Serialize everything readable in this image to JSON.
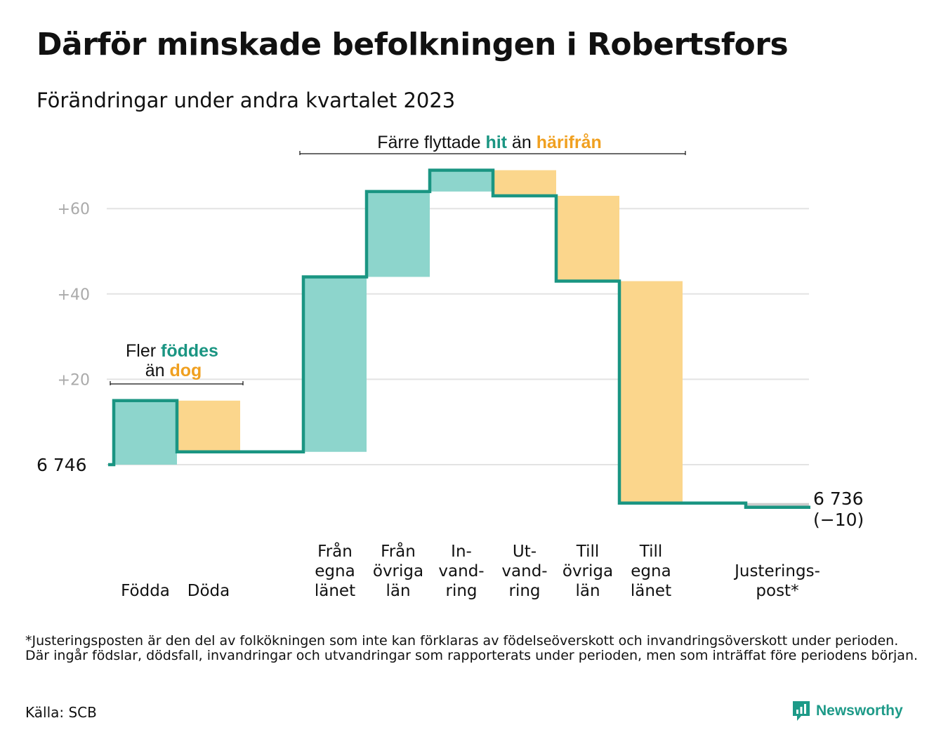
{
  "title": "Därför minskade befolkningen i Robertsfors",
  "subtitle": "Förändringar under andra kvartalet 2023",
  "colors": {
    "increase": "#8dd5cc",
    "decrease": "#fbd68c",
    "line": "#1a9582",
    "hit": "#1a9582",
    "harifran": "#f0a020",
    "adjustment": "#cccccc",
    "grid": "#e3e3e3",
    "tick": "#aaaaaa"
  },
  "chart_data": {
    "type": "waterfall",
    "start_value": 6746,
    "start_label": "6  746",
    "end_value": 6736,
    "end_label_line1": "6 736",
    "end_label_line2": "(−10)",
    "y_axis_ticks": [
      {
        "value": 20,
        "label": "+20"
      },
      {
        "value": 40,
        "label": "+40"
      },
      {
        "value": 60,
        "label": "+60"
      }
    ],
    "ylim": [
      -13,
      70
    ],
    "steps": [
      {
        "category": [
          "Födda"
        ],
        "change": 15,
        "kind": "increase"
      },
      {
        "category": [
          "Döda"
        ],
        "change": -12,
        "kind": "decrease"
      },
      {
        "category": [
          "Från",
          "egna",
          "länet"
        ],
        "change": 41,
        "kind": "increase"
      },
      {
        "category": [
          "Från",
          "övriga",
          "län"
        ],
        "change": 20,
        "kind": "increase"
      },
      {
        "category": [
          "In-",
          "vand-",
          "ring"
        ],
        "change": 5,
        "kind": "increase"
      },
      {
        "category": [
          "Ut-",
          "vand-",
          "ring"
        ],
        "change": -6,
        "kind": "decrease"
      },
      {
        "category": [
          "Till",
          "övriga",
          "län"
        ],
        "change": -20,
        "kind": "decrease"
      },
      {
        "category": [
          "Till",
          "egna",
          "länet"
        ],
        "change": -52,
        "kind": "decrease"
      },
      {
        "category": [
          "Justerings-",
          "post*"
        ],
        "change": -1,
        "kind": "adjustment"
      }
    ],
    "annotations": [
      {
        "line1_prefix": "Fler ",
        "line1_highlight": "föddes",
        "line2_prefix": "än ",
        "line2_highlight": "dog"
      },
      {
        "prefix": "Färre flyttade ",
        "highlight1": "hit",
        "middle": " än ",
        "highlight2": "härifrån"
      }
    ]
  },
  "footnote": "*Justeringsposten är den del av folkökningen som inte kan förklaras av födelseöverskott och invandringsöverskott under perioden. Där ingår födslar, dödsfall, invandringar och utvandringar som rapporterats under perioden, men som inträffat före periodens början.",
  "source": "Källa: SCB",
  "logo": {
    "text": "Newsworthy",
    "icon": "newsworthy-chart-icon"
  }
}
